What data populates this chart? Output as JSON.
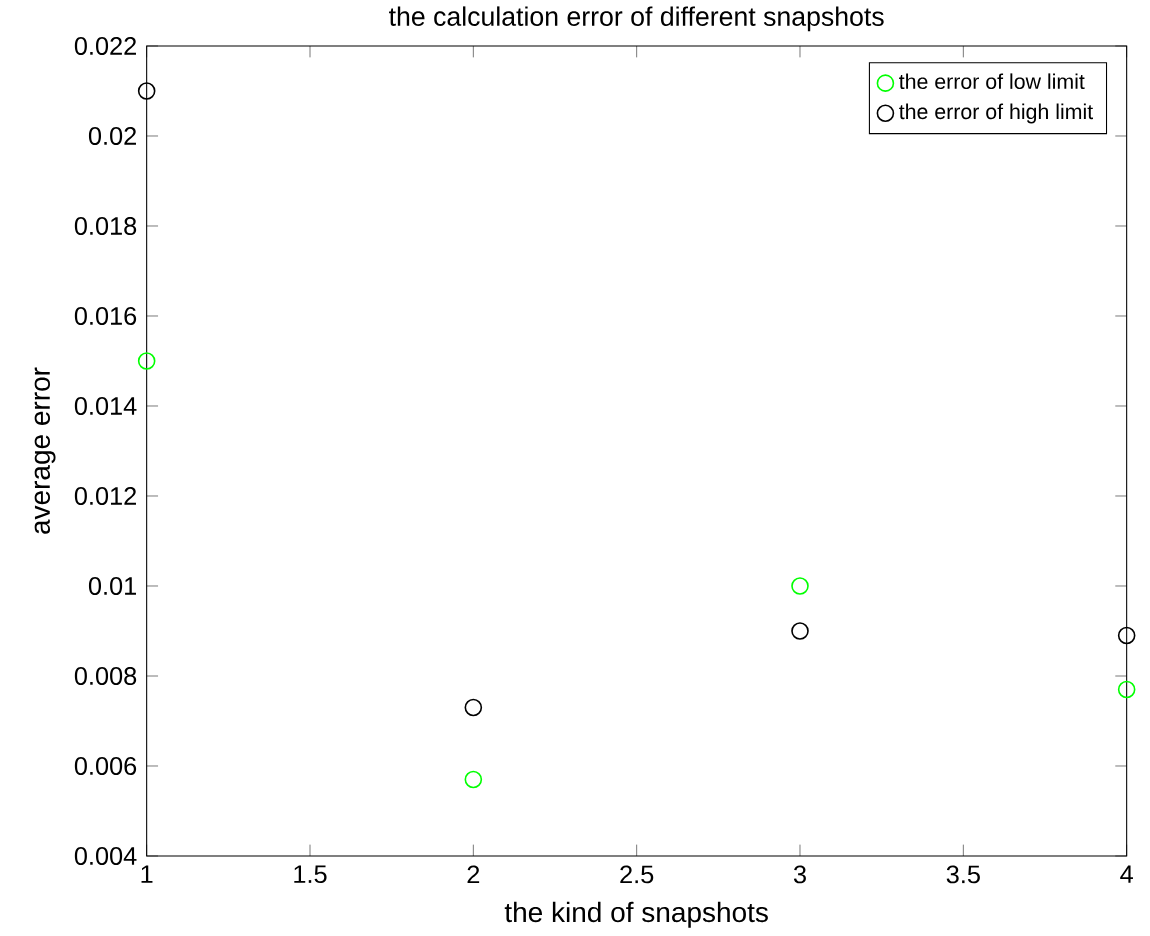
{
  "chart_data": {
    "type": "scatter",
    "title": "the calculation error of different snapshots",
    "xlabel": "the kind of snapshots",
    "ylabel": "average error",
    "x": [
      1,
      2,
      3,
      4
    ],
    "series": [
      {
        "name": "the error of low limit",
        "color": "#00ff00",
        "values": [
          0.015,
          0.0057,
          0.01,
          0.0077
        ]
      },
      {
        "name": "the error of high limit",
        "color": "#000000",
        "values": [
          0.021,
          0.0073,
          0.009,
          0.0089
        ]
      }
    ],
    "xlim": [
      1,
      4
    ],
    "xticks": [
      1,
      1.5,
      2,
      2.5,
      3,
      3.5,
      4
    ],
    "ylim": [
      0.004,
      0.022
    ],
    "yticks": [
      0.004,
      0.006,
      0.008,
      0.01,
      0.012,
      0.014,
      0.016,
      0.018,
      0.02,
      0.022
    ],
    "marker": "circle",
    "legend": "top right",
    "grid": false
  }
}
